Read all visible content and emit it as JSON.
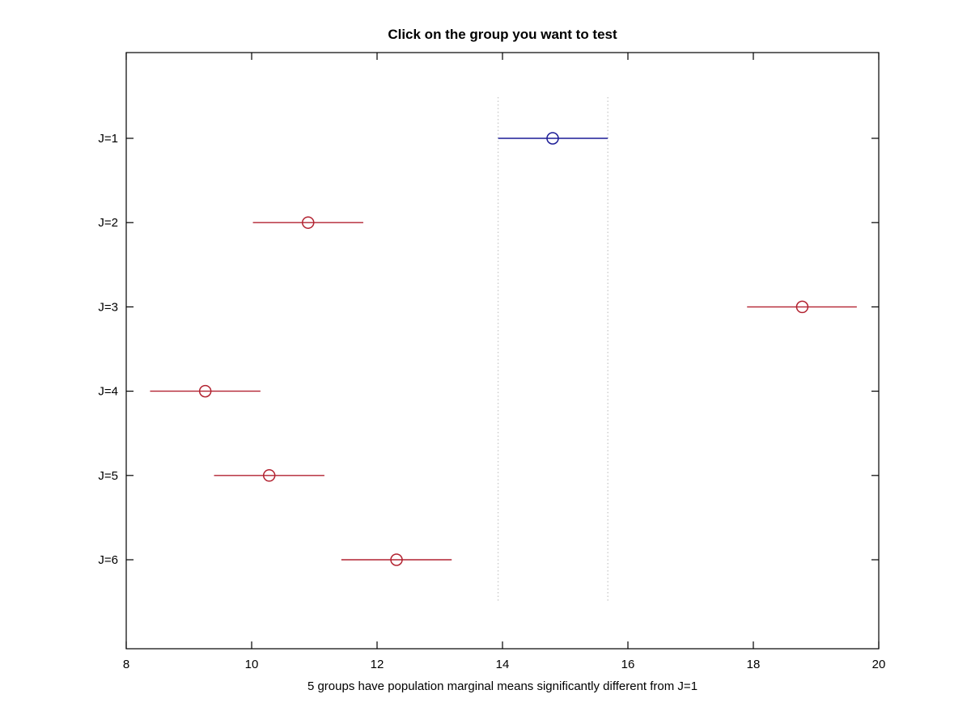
{
  "figure": {
    "title": "Click on the group you want to test",
    "xlabel": "5 groups have population marginal means significantly different from J=1"
  },
  "colors": {
    "selected_group": "#1c1c96",
    "different_group": "#b22230",
    "reference_line": "#cccccc",
    "axis": "#000000",
    "background": "#ffffff"
  },
  "chart_data": {
    "type": "scatter",
    "subtype": "multcompare-interval-plot",
    "title": "Click on the group you want to test",
    "xlabel": "5 groups have population marginal means significantly different from J=1",
    "ylabel": "",
    "xlim": [
      8,
      20
    ],
    "xticks": [
      8,
      10,
      12,
      14,
      16,
      18,
      20
    ],
    "grid": false,
    "legend": null,
    "ylabels_top_to_bottom": [
      "J=1",
      "J=2",
      "J=3",
      "J=4",
      "J=5",
      "J=6"
    ],
    "groups": [
      {
        "label": "J=1",
        "mean": 14.8,
        "ci_low": 13.93,
        "ci_high": 15.68,
        "status": "selected",
        "color_key": "selected_group"
      },
      {
        "label": "J=2",
        "mean": 10.9,
        "ci_low": 10.02,
        "ci_high": 11.78,
        "status": "significantly-different",
        "color_key": "different_group"
      },
      {
        "label": "J=3",
        "mean": 18.78,
        "ci_low": 17.9,
        "ci_high": 19.65,
        "status": "significantly-different",
        "color_key": "different_group"
      },
      {
        "label": "J=4",
        "mean": 9.26,
        "ci_low": 8.38,
        "ci_high": 10.14,
        "status": "significantly-different",
        "color_key": "different_group"
      },
      {
        "label": "J=5",
        "mean": 10.28,
        "ci_low": 9.4,
        "ci_high": 11.16,
        "status": "significantly-different",
        "color_key": "different_group"
      },
      {
        "label": "J=6",
        "mean": 12.31,
        "ci_low": 11.43,
        "ci_high": 13.19,
        "status": "significantly-different",
        "color_key": "different_group"
      }
    ],
    "reference_lines_x": [
      13.93,
      15.68
    ],
    "reference_line_style": "dotted"
  }
}
